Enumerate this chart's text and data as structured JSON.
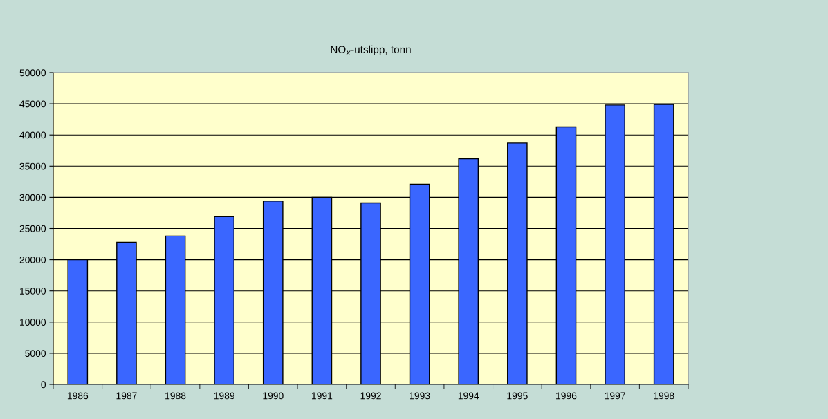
{
  "chart_data": {
    "type": "bar",
    "title": "NO$_{x}$-utslipp, tonn",
    "categories": [
      "1986",
      "1987",
      "1988",
      "1989",
      "1990",
      "1991",
      "1992",
      "1993",
      "1994",
      "1995",
      "1996",
      "1997",
      "1998"
    ],
    "values": [
      20000,
      22800,
      23800,
      26900,
      29400,
      30000,
      29100,
      32100,
      36200,
      38700,
      41300,
      44800,
      44900
    ],
    "color": "#3a66ff",
    "ylim": [
      0,
      50000
    ],
    "yticks": [
      0,
      5000,
      10000,
      15000,
      20000,
      25000,
      30000,
      35000,
      40000,
      45000,
      50000
    ],
    "grid": "y",
    "legend": false
  }
}
